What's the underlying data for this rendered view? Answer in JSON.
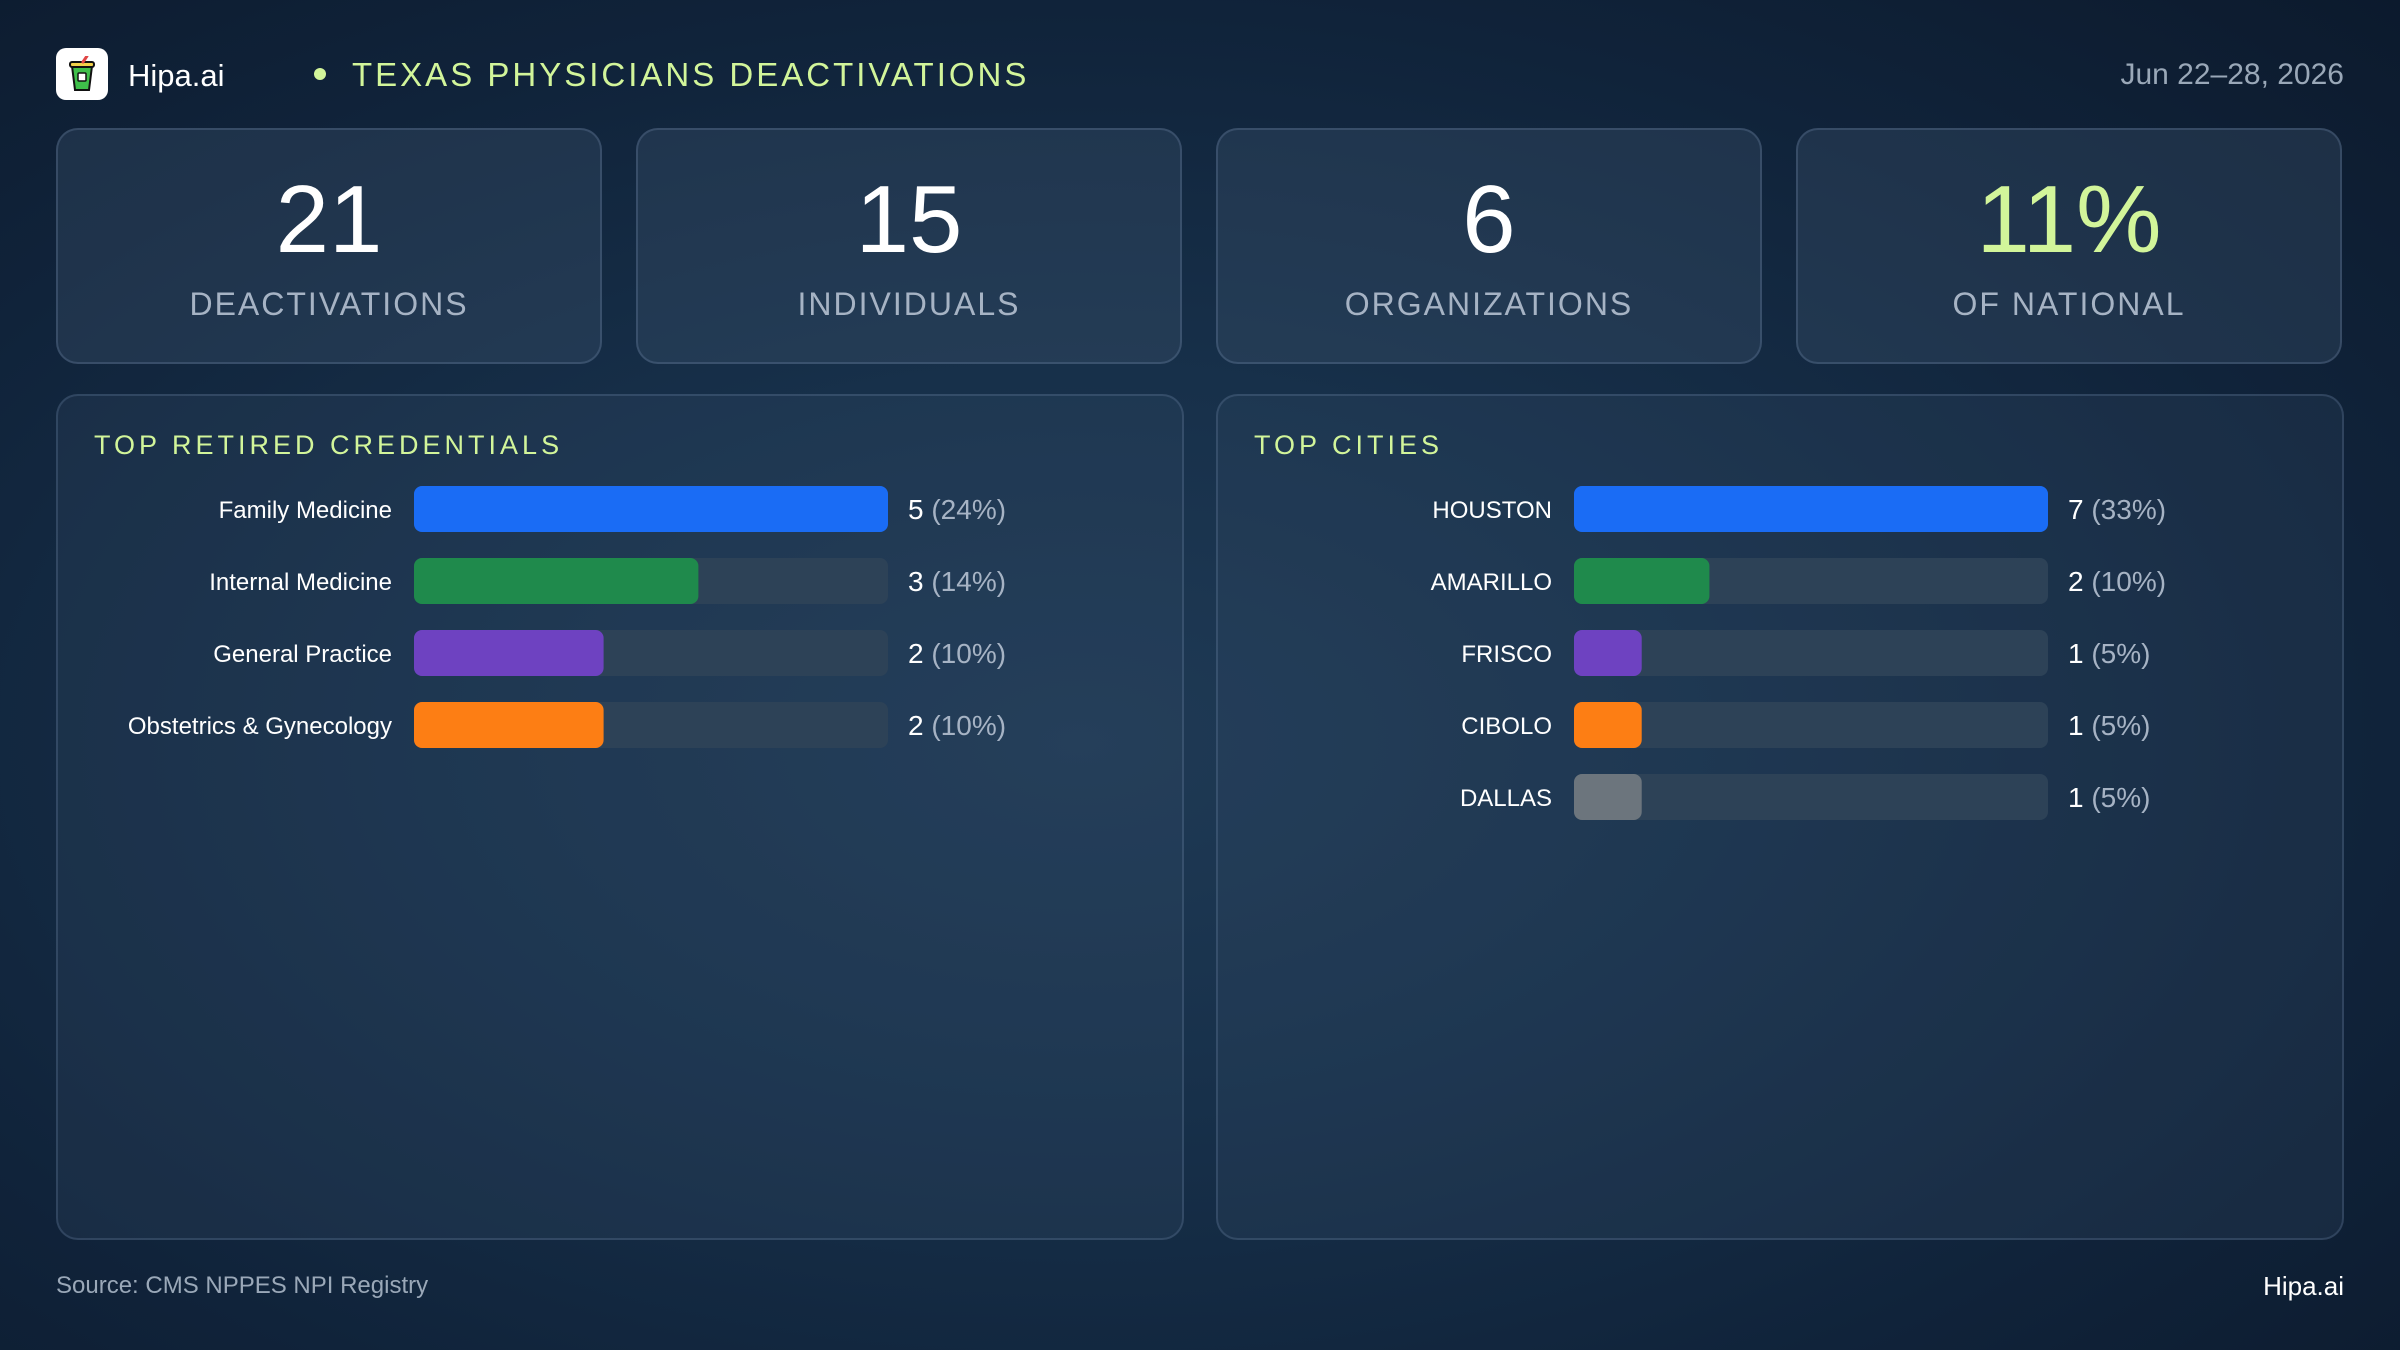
{
  "header": {
    "brand": "Hipa.ai",
    "title": "TEXAS PHYSICIANS DEACTIVATIONS",
    "date_range": "Jun 22–28, 2026",
    "logo_icon": "cup-icon"
  },
  "theme": {
    "accent": "#d2f59a",
    "track": "#2d4257",
    "label_muted": "#a6b3c4"
  },
  "kpis": [
    {
      "value": "21",
      "label": "DEACTIVATIONS",
      "color": "#ffffff"
    },
    {
      "value": "15",
      "label": "INDIVIDUALS",
      "color": "#ffffff"
    },
    {
      "value": "6",
      "label": "ORGANIZATIONS",
      "color": "#ffffff"
    },
    {
      "value": "11%",
      "label": "OF NATIONAL",
      "color": "#d2f59a"
    }
  ],
  "chart_data": [
    {
      "type": "bar",
      "orientation": "horizontal",
      "title": "TOP RETIRED CREDENTIALS",
      "categories": [
        "Family Medicine",
        "Internal Medicine",
        "General Practice",
        "Obstetrics & Gynecology"
      ],
      "values": [
        5,
        3,
        2,
        2
      ],
      "percent_labels": [
        "(24%)",
        "(14%)",
        "(10%)",
        "(10%)"
      ],
      "colors": [
        "#1a6cf5",
        "#1f8a4c",
        "#6e42c1",
        "#fd7e14"
      ],
      "xlim": [
        0,
        5
      ]
    },
    {
      "type": "bar",
      "orientation": "horizontal",
      "title": "TOP CITIES",
      "categories": [
        "HOUSTON",
        "AMARILLO",
        "FRISCO",
        "CIBOLO",
        "DALLAS"
      ],
      "values": [
        7,
        2,
        1,
        1,
        1
      ],
      "percent_labels": [
        "(33%)",
        "(10%)",
        "(5%)",
        "(5%)",
        "(5%)"
      ],
      "colors": [
        "#1a6cf5",
        "#1f8a4c",
        "#6e42c1",
        "#fd7e14",
        "#6c757d"
      ],
      "xlim": [
        0,
        7
      ]
    }
  ],
  "footer": {
    "source": "Source: CMS NPPES NPI Registry",
    "brand": "Hipa.ai"
  }
}
